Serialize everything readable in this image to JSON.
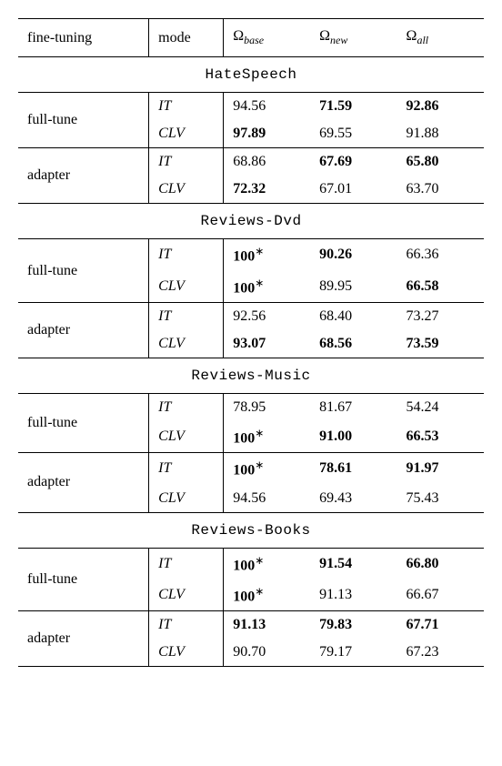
{
  "header": {
    "fine_tuning": "fine-tuning",
    "mode": "mode",
    "omega_base_sym": "Ω",
    "omega_base_sub": "base",
    "omega_new_sym": "Ω",
    "omega_new_sub": "new",
    "omega_all_sym": "Ω",
    "omega_all_sub": "all"
  },
  "sections": [
    {
      "title": "HateSpeech",
      "groups": [
        {
          "ft": "full-tune",
          "rows": [
            {
              "mode": "IT",
              "base": {
                "v": "94.56",
                "b": false,
                "s": false
              },
              "new": {
                "v": "71.59",
                "b": true,
                "s": false
              },
              "all": {
                "v": "92.86",
                "b": true,
                "s": false
              }
            },
            {
              "mode": "CLV",
              "base": {
                "v": "97.89",
                "b": true,
                "s": false
              },
              "new": {
                "v": "69.55",
                "b": false,
                "s": false
              },
              "all": {
                "v": "91.88",
                "b": false,
                "s": false
              }
            }
          ]
        },
        {
          "ft": "adapter",
          "rows": [
            {
              "mode": "IT",
              "base": {
                "v": "68.86",
                "b": false,
                "s": false
              },
              "new": {
                "v": "67.69",
                "b": true,
                "s": false
              },
              "all": {
                "v": "65.80",
                "b": true,
                "s": false
              }
            },
            {
              "mode": "CLV",
              "base": {
                "v": "72.32",
                "b": true,
                "s": false
              },
              "new": {
                "v": "67.01",
                "b": false,
                "s": false
              },
              "all": {
                "v": "63.70",
                "b": false,
                "s": false
              }
            }
          ]
        }
      ]
    },
    {
      "title": "Reviews-Dvd",
      "groups": [
        {
          "ft": "full-tune",
          "rows": [
            {
              "mode": "IT",
              "base": {
                "v": "100",
                "b": true,
                "s": true
              },
              "new": {
                "v": "90.26",
                "b": true,
                "s": false
              },
              "all": {
                "v": "66.36",
                "b": false,
                "s": false
              }
            },
            {
              "mode": "CLV",
              "base": {
                "v": "100",
                "b": true,
                "s": true
              },
              "new": {
                "v": "89.95",
                "b": false,
                "s": false
              },
              "all": {
                "v": "66.58",
                "b": true,
                "s": false
              }
            }
          ]
        },
        {
          "ft": "adapter",
          "rows": [
            {
              "mode": "IT",
              "base": {
                "v": "92.56",
                "b": false,
                "s": false
              },
              "new": {
                "v": "68.40",
                "b": false,
                "s": false
              },
              "all": {
                "v": "73.27",
                "b": false,
                "s": false
              }
            },
            {
              "mode": "CLV",
              "base": {
                "v": "93.07",
                "b": true,
                "s": false
              },
              "new": {
                "v": "68.56",
                "b": true,
                "s": false
              },
              "all": {
                "v": "73.59",
                "b": true,
                "s": false
              }
            }
          ]
        }
      ]
    },
    {
      "title": "Reviews-Music",
      "groups": [
        {
          "ft": "full-tune",
          "rows": [
            {
              "mode": "IT",
              "base": {
                "v": "78.95",
                "b": false,
                "s": false
              },
              "new": {
                "v": "81.67",
                "b": false,
                "s": false
              },
              "all": {
                "v": "54.24",
                "b": false,
                "s": false
              }
            },
            {
              "mode": "CLV",
              "base": {
                "v": "100",
                "b": true,
                "s": true
              },
              "new": {
                "v": "91.00",
                "b": true,
                "s": false
              },
              "all": {
                "v": "66.53",
                "b": true,
                "s": false
              }
            }
          ]
        },
        {
          "ft": "adapter",
          "rows": [
            {
              "mode": "IT",
              "base": {
                "v": "100",
                "b": true,
                "s": true
              },
              "new": {
                "v": "78.61",
                "b": true,
                "s": false
              },
              "all": {
                "v": "91.97",
                "b": true,
                "s": false
              }
            },
            {
              "mode": "CLV",
              "base": {
                "v": "94.56",
                "b": false,
                "s": false
              },
              "new": {
                "v": "69.43",
                "b": false,
                "s": false
              },
              "all": {
                "v": "75.43",
                "b": false,
                "s": false
              }
            }
          ]
        }
      ]
    },
    {
      "title": "Reviews-Books",
      "groups": [
        {
          "ft": "full-tune",
          "rows": [
            {
              "mode": "IT",
              "base": {
                "v": "100",
                "b": true,
                "s": true
              },
              "new": {
                "v": "91.54",
                "b": true,
                "s": false
              },
              "all": {
                "v": "66.80",
                "b": true,
                "s": false
              }
            },
            {
              "mode": "CLV",
              "base": {
                "v": "100",
                "b": true,
                "s": true
              },
              "new": {
                "v": "91.13",
                "b": false,
                "s": false
              },
              "all": {
                "v": "66.67",
                "b": false,
                "s": false
              }
            }
          ]
        },
        {
          "ft": "adapter",
          "rows": [
            {
              "mode": "IT",
              "base": {
                "v": "91.13",
                "b": true,
                "s": false
              },
              "new": {
                "v": "79.83",
                "b": true,
                "s": false
              },
              "all": {
                "v": "67.71",
                "b": true,
                "s": false
              }
            },
            {
              "mode": "CLV",
              "base": {
                "v": "90.70",
                "b": false,
                "s": false
              },
              "new": {
                "v": "79.17",
                "b": false,
                "s": false
              },
              "all": {
                "v": "67.23",
                "b": false,
                "s": false
              }
            }
          ]
        }
      ]
    }
  ]
}
